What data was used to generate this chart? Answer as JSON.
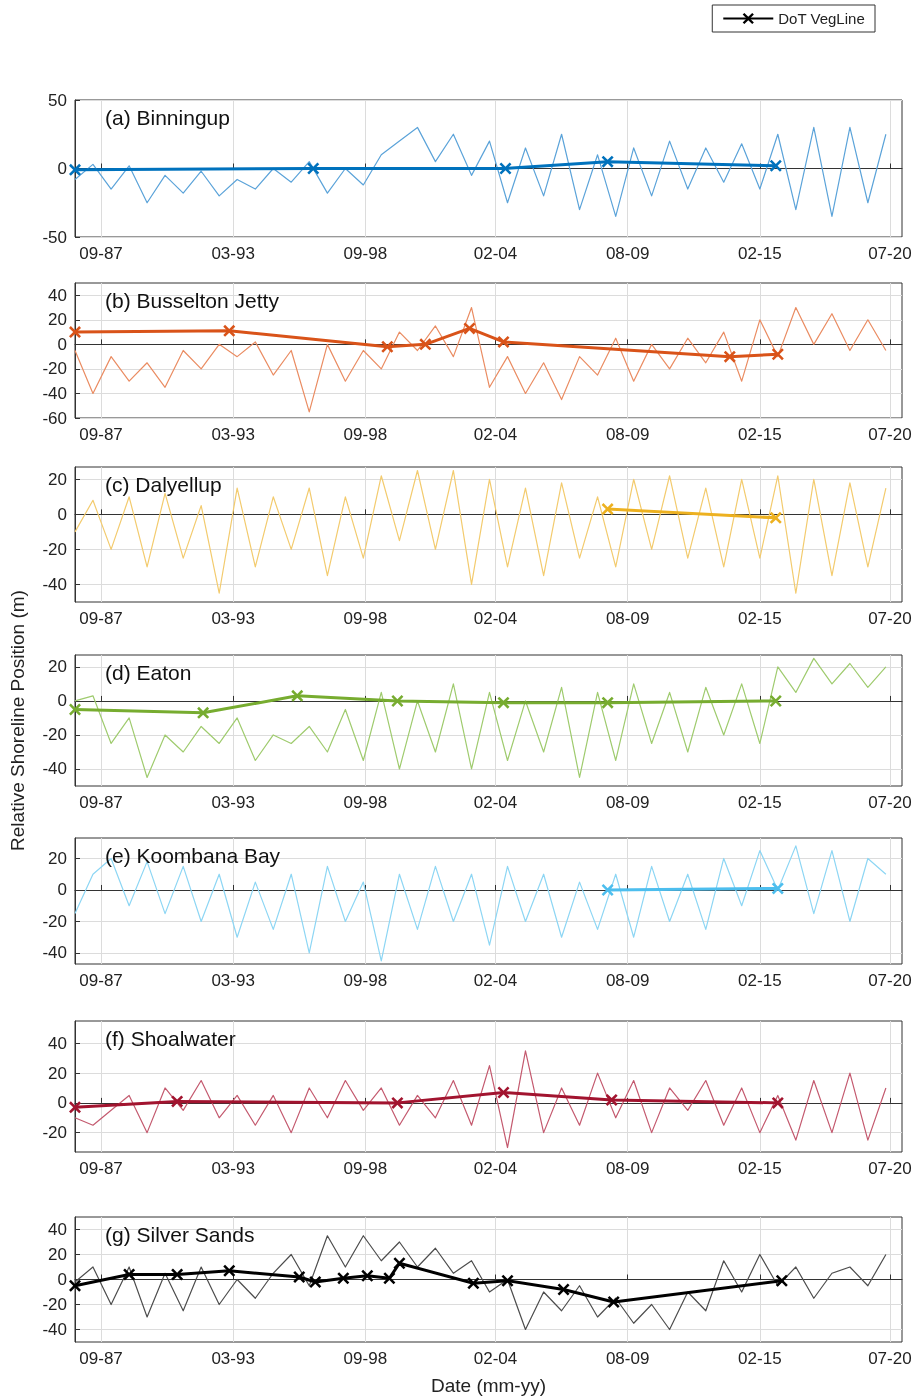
{
  "chart_data": [
    {
      "type": "line",
      "title": "(a) Binningup",
      "x": [
        "1986-08",
        "1987-05",
        "1988-02",
        "1988-11",
        "1989-08",
        "1990-05",
        "1991-02",
        "1991-11",
        "1992-08",
        "1993-05",
        "1994-02",
        "1994-11",
        "1995-08",
        "1996-05",
        "1997-02",
        "1997-11",
        "1998-08",
        "1999-05",
        "2000-02",
        "2000-11",
        "2001-08",
        "2002-05",
        "2003-02",
        "2003-11",
        "2004-08",
        "2005-05",
        "2006-02",
        "2006-11",
        "2007-08",
        "2008-05",
        "2009-02",
        "2009-11",
        "2010-08",
        "2011-05",
        "2012-02",
        "2012-11",
        "2013-08",
        "2014-05",
        "2015-02",
        "2015-11",
        "2016-08",
        "2017-05",
        "2018-02",
        "2018-11",
        "2019-08",
        "2020-05"
      ],
      "xlim": [
        "1986-08",
        "2021-01"
      ],
      "xticks": [
        {
          "value": "1987-09",
          "label": "09-87"
        },
        {
          "value": "1993-03",
          "label": "03-93"
        },
        {
          "value": "1998-09",
          "label": "09-98"
        },
        {
          "value": "2004-02",
          "label": "02-04"
        },
        {
          "value": "2009-08",
          "label": "08-09"
        },
        {
          "value": "2015-02",
          "label": "02-15"
        },
        {
          "value": "2020-07",
          "label": "07-20"
        }
      ],
      "ylim": [
        -50,
        50
      ],
      "yticks": [
        -50,
        0,
        50
      ],
      "grid": true,
      "series": [
        {
          "color": "#5ba3d9",
          "marker": "none",
          "values": [
            -8,
            3,
            -15,
            2,
            -25,
            -5,
            -18,
            -2,
            -20,
            -8,
            -15,
            0,
            -10,
            5,
            -18,
            0,
            -12,
            10,
            20,
            30,
            5,
            25,
            -5,
            20,
            -25,
            15,
            -20,
            25,
            -30,
            10,
            -35,
            15,
            -20,
            20,
            -15,
            15,
            -10,
            18,
            -15,
            25,
            -30,
            30,
            -35,
            30,
            -25,
            25
          ]
        },
        {
          "color": "#0072bd",
          "marker": "cross",
          "x": [
            "1986-08",
            "1996-07",
            "2004-07",
            "2008-10",
            "2015-10"
          ],
          "values": [
            -1,
            0,
            0,
            5,
            2
          ]
        }
      ]
    },
    {
      "type": "line",
      "title": "(b) Busselton Jetty",
      "x": [
        "1986-08",
        "1987-05",
        "1988-02",
        "1988-11",
        "1989-08",
        "1990-05",
        "1991-02",
        "1991-11",
        "1992-08",
        "1993-05",
        "1994-02",
        "1994-11",
        "1995-08",
        "1996-05",
        "1997-02",
        "1997-11",
        "1998-08",
        "1999-05",
        "2000-02",
        "2000-11",
        "2001-08",
        "2002-05",
        "2003-02",
        "2003-11",
        "2004-08",
        "2005-05",
        "2006-02",
        "2006-11",
        "2007-08",
        "2008-05",
        "2009-02",
        "2009-11",
        "2010-08",
        "2011-05",
        "2012-02",
        "2012-11",
        "2013-08",
        "2014-05",
        "2015-02",
        "2015-11",
        "2016-08",
        "2017-05",
        "2018-02",
        "2018-11",
        "2019-08",
        "2020-05"
      ],
      "xlim": [
        "1986-08",
        "2021-01"
      ],
      "xticks": [
        {
          "value": "1987-09",
          "label": "09-87"
        },
        {
          "value": "1993-03",
          "label": "03-93"
        },
        {
          "value": "1998-09",
          "label": "09-98"
        },
        {
          "value": "2004-02",
          "label": "02-04"
        },
        {
          "value": "2009-08",
          "label": "08-09"
        },
        {
          "value": "2015-02",
          "label": "02-15"
        },
        {
          "value": "2020-07",
          "label": "07-20"
        }
      ],
      "ylim": [
        -60,
        50
      ],
      "yticks": [
        -60,
        -40,
        -20,
        0,
        20,
        40
      ],
      "grid": true,
      "series": [
        {
          "color": "#ea8c62",
          "marker": "none",
          "values": [
            -5,
            -40,
            -10,
            -30,
            -15,
            -35,
            -5,
            -20,
            0,
            -10,
            2,
            -25,
            -5,
            -55,
            0,
            -30,
            -5,
            -20,
            10,
            -5,
            15,
            -10,
            30,
            -35,
            -10,
            -40,
            -15,
            -45,
            -10,
            -25,
            5,
            -30,
            0,
            -20,
            5,
            -15,
            10,
            -30,
            20,
            -10,
            30,
            0,
            25,
            -5,
            20,
            -5
          ]
        },
        {
          "color": "#d95319",
          "marker": "cross",
          "x": [
            "1986-08",
            "1993-01",
            "1999-08",
            "2001-03",
            "2003-01",
            "2004-06",
            "2013-11",
            "2015-11"
          ],
          "values": [
            10,
            11,
            -2,
            0,
            13,
            2,
            -10,
            -8
          ]
        }
      ]
    },
    {
      "type": "line",
      "title": "(c) Dalyellup",
      "x": [
        "1986-08",
        "1987-05",
        "1988-02",
        "1988-11",
        "1989-08",
        "1990-05",
        "1991-02",
        "1991-11",
        "1992-08",
        "1993-05",
        "1994-02",
        "1994-11",
        "1995-08",
        "1996-05",
        "1997-02",
        "1997-11",
        "1998-08",
        "1999-05",
        "2000-02",
        "2000-11",
        "2001-08",
        "2002-05",
        "2003-02",
        "2003-11",
        "2004-08",
        "2005-05",
        "2006-02",
        "2006-11",
        "2007-08",
        "2008-05",
        "2009-02",
        "2009-11",
        "2010-08",
        "2011-05",
        "2012-02",
        "2012-11",
        "2013-08",
        "2014-05",
        "2015-02",
        "2015-11",
        "2016-08",
        "2017-05",
        "2018-02",
        "2018-11",
        "2019-08",
        "2020-05"
      ],
      "xlim": [
        "1986-08",
        "2021-01"
      ],
      "xticks": [
        {
          "value": "1987-09",
          "label": "09-87"
        },
        {
          "value": "1993-03",
          "label": "03-93"
        },
        {
          "value": "1998-09",
          "label": "09-98"
        },
        {
          "value": "2004-02",
          "label": "02-04"
        },
        {
          "value": "2009-08",
          "label": "08-09"
        },
        {
          "value": "2015-02",
          "label": "02-15"
        },
        {
          "value": "2020-07",
          "label": "07-20"
        }
      ],
      "ylim": [
        -50,
        27
      ],
      "yticks": [
        -40,
        -20,
        0,
        20
      ],
      "grid": true,
      "series": [
        {
          "color": "#f3cb6e",
          "marker": "none",
          "values": [
            -10,
            8,
            -20,
            10,
            -30,
            12,
            -25,
            5,
            -45,
            15,
            -30,
            10,
            -20,
            15,
            -35,
            10,
            -25,
            22,
            -15,
            25,
            -20,
            25,
            -40,
            20,
            -30,
            15,
            -35,
            18,
            -25,
            10,
            -30,
            20,
            -20,
            22,
            -25,
            15,
            -30,
            20,
            -25,
            22,
            -45,
            20,
            -35,
            18,
            -30,
            15
          ]
        },
        {
          "color": "#edb120",
          "marker": "cross",
          "x": [
            "2008-10",
            "2015-10"
          ],
          "values": [
            3,
            -2
          ]
        }
      ]
    },
    {
      "type": "line",
      "title": "(d) Eaton",
      "ylabel": "Relative Shoreline Position (m)",
      "x": [
        "1986-08",
        "1987-05",
        "1988-02",
        "1988-11",
        "1989-08",
        "1990-05",
        "1991-02",
        "1991-11",
        "1992-08",
        "1993-05",
        "1994-02",
        "1994-11",
        "1995-08",
        "1996-05",
        "1997-02",
        "1997-11",
        "1998-08",
        "1999-05",
        "2000-02",
        "2000-11",
        "2001-08",
        "2002-05",
        "2003-02",
        "2003-11",
        "2004-08",
        "2005-05",
        "2006-02",
        "2006-11",
        "2007-08",
        "2008-05",
        "2009-02",
        "2009-11",
        "2010-08",
        "2011-05",
        "2012-02",
        "2012-11",
        "2013-08",
        "2014-05",
        "2015-02",
        "2015-11",
        "2016-08",
        "2017-05",
        "2018-02",
        "2018-11",
        "2019-08",
        "2020-05"
      ],
      "xlim": [
        "1986-08",
        "2021-01"
      ],
      "xticks": [
        {
          "value": "1987-09",
          "label": "09-87"
        },
        {
          "value": "1993-03",
          "label": "03-93"
        },
        {
          "value": "1998-09",
          "label": "09-98"
        },
        {
          "value": "2004-02",
          "label": "02-04"
        },
        {
          "value": "2009-08",
          "label": "08-09"
        },
        {
          "value": "2015-02",
          "label": "02-15"
        },
        {
          "value": "2020-07",
          "label": "07-20"
        }
      ],
      "ylim": [
        -50,
        27
      ],
      "yticks": [
        -40,
        -20,
        0,
        20
      ],
      "grid": true,
      "series": [
        {
          "color": "#9fcb6e",
          "marker": "none",
          "values": [
            0,
            3,
            -25,
            -10,
            -45,
            -20,
            -30,
            -15,
            -25,
            -10,
            -35,
            -20,
            -25,
            -15,
            -30,
            -5,
            -35,
            5,
            -40,
            0,
            -30,
            10,
            -40,
            5,
            -35,
            0,
            -30,
            8,
            -45,
            5,
            -35,
            10,
            -25,
            5,
            -30,
            8,
            -20,
            10,
            -25,
            20,
            5,
            25,
            10,
            22,
            8,
            20
          ]
        },
        {
          "color": "#77ac30",
          "marker": "cross",
          "x": [
            "1986-08",
            "1991-12",
            "1995-11",
            "2000-01",
            "2004-06",
            "2008-10",
            "2015-10"
          ],
          "values": [
            -5,
            -7,
            3,
            0,
            -1,
            -1,
            0
          ]
        }
      ]
    },
    {
      "type": "line",
      "title": "(e) Koombana Bay",
      "x": [
        "1986-08",
        "1987-05",
        "1988-02",
        "1988-11",
        "1989-08",
        "1990-05",
        "1991-02",
        "1991-11",
        "1992-08",
        "1993-05",
        "1994-02",
        "1994-11",
        "1995-08",
        "1996-05",
        "1997-02",
        "1997-11",
        "1998-08",
        "1999-05",
        "2000-02",
        "2000-11",
        "2001-08",
        "2002-05",
        "2003-02",
        "2003-11",
        "2004-08",
        "2005-05",
        "2006-02",
        "2006-11",
        "2007-08",
        "2008-05",
        "2009-02",
        "2009-11",
        "2010-08",
        "2011-05",
        "2012-02",
        "2012-11",
        "2013-08",
        "2014-05",
        "2015-02",
        "2015-11",
        "2016-08",
        "2017-05",
        "2018-02",
        "2018-11",
        "2019-08",
        "2020-05"
      ],
      "xlim": [
        "1986-08",
        "2021-01"
      ],
      "xticks": [
        {
          "value": "1987-09",
          "label": "09-87"
        },
        {
          "value": "1993-03",
          "label": "03-93"
        },
        {
          "value": "1998-09",
          "label": "09-98"
        },
        {
          "value": "2004-02",
          "label": "02-04"
        },
        {
          "value": "2009-08",
          "label": "08-09"
        },
        {
          "value": "2015-02",
          "label": "02-15"
        },
        {
          "value": "2020-07",
          "label": "07-20"
        }
      ],
      "ylim": [
        -47,
        33
      ],
      "yticks": [
        -40,
        -20,
        0,
        20
      ],
      "grid": true,
      "series": [
        {
          "color": "#8dd6f4",
          "marker": "none",
          "values": [
            -15,
            10,
            20,
            -10,
            18,
            -15,
            15,
            -20,
            10,
            -30,
            5,
            -25,
            10,
            -40,
            15,
            -20,
            5,
            -45,
            10,
            -25,
            15,
            -20,
            10,
            -35,
            15,
            -20,
            10,
            -30,
            5,
            -25,
            10,
            -30,
            15,
            -20,
            10,
            -25,
            20,
            -10,
            25,
            0,
            28,
            -15,
            25,
            -20,
            20,
            10
          ]
        },
        {
          "color": "#4dbeee",
          "marker": "cross",
          "x": [
            "2008-10",
            "2015-11"
          ],
          "values": [
            0,
            1
          ]
        }
      ]
    },
    {
      "type": "line",
      "title": "(f) Shoalwater",
      "x": [
        "1986-08",
        "1987-05",
        "1988-02",
        "1988-11",
        "1989-08",
        "1990-05",
        "1991-02",
        "1991-11",
        "1992-08",
        "1993-05",
        "1994-02",
        "1994-11",
        "1995-08",
        "1996-05",
        "1997-02",
        "1997-11",
        "1998-08",
        "1999-05",
        "2000-02",
        "2000-11",
        "2001-08",
        "2002-05",
        "2003-02",
        "2003-11",
        "2004-08",
        "2005-05",
        "2006-02",
        "2006-11",
        "2007-08",
        "2008-05",
        "2009-02",
        "2009-11",
        "2010-08",
        "2011-05",
        "2012-02",
        "2012-11",
        "2013-08",
        "2014-05",
        "2015-02",
        "2015-11",
        "2016-08",
        "2017-05",
        "2018-02",
        "2018-11",
        "2019-08",
        "2020-05"
      ],
      "xlim": [
        "1986-08",
        "2021-01"
      ],
      "xticks": [
        {
          "value": "1987-09",
          "label": "09-87"
        },
        {
          "value": "1993-03",
          "label": "03-93"
        },
        {
          "value": "1998-09",
          "label": "09-98"
        },
        {
          "value": "2004-02",
          "label": "02-04"
        },
        {
          "value": "2009-08",
          "label": "08-09"
        },
        {
          "value": "2015-02",
          "label": "02-15"
        },
        {
          "value": "2020-07",
          "label": "07-20"
        }
      ],
      "ylim": [
        -33,
        55
      ],
      "yticks": [
        -20,
        0,
        20,
        40
      ],
      "grid": true,
      "series": [
        {
          "color": "#c45a6f",
          "marker": "none",
          "values": [
            -10,
            -15,
            -5,
            5,
            -20,
            10,
            -5,
            15,
            -10,
            5,
            -15,
            5,
            -20,
            10,
            -10,
            15,
            -5,
            10,
            -15,
            5,
            -10,
            15,
            -15,
            25,
            -30,
            35,
            -20,
            10,
            -15,
            20,
            -10,
            15,
            -20,
            10,
            -5,
            15,
            -15,
            10,
            -20,
            5,
            -25,
            15,
            -20,
            20,
            -25,
            10
          ]
        },
        {
          "color": "#a2142f",
          "marker": "cross",
          "x": [
            "1986-08",
            "1990-11",
            "2000-01",
            "2004-06",
            "2008-12",
            "2015-11"
          ],
          "values": [
            -3,
            1,
            0,
            7,
            2,
            0
          ]
        }
      ]
    },
    {
      "type": "line",
      "title": "(g) Silver Sands",
      "xlabel": "Date (mm-yy)",
      "legend": "top right",
      "x": [
        "1986-08",
        "1987-05",
        "1988-02",
        "1988-11",
        "1989-08",
        "1990-05",
        "1991-02",
        "1991-11",
        "1992-08",
        "1993-05",
        "1994-02",
        "1994-11",
        "1995-08",
        "1996-05",
        "1997-02",
        "1997-11",
        "1998-08",
        "1999-05",
        "2000-02",
        "2000-11",
        "2001-08",
        "2002-05",
        "2003-02",
        "2003-11",
        "2004-08",
        "2005-05",
        "2006-02",
        "2006-11",
        "2007-08",
        "2008-05",
        "2009-02",
        "2009-11",
        "2010-08",
        "2011-05",
        "2012-02",
        "2012-11",
        "2013-08",
        "2014-05",
        "2015-02",
        "2015-11",
        "2016-08",
        "2017-05",
        "2018-02",
        "2018-11",
        "2019-08",
        "2020-05"
      ],
      "xlim": [
        "1986-08",
        "2021-01"
      ],
      "xticks": [
        {
          "value": "1987-09",
          "label": "09-87"
        },
        {
          "value": "1993-03",
          "label": "03-93"
        },
        {
          "value": "1998-09",
          "label": "09-98"
        },
        {
          "value": "2004-02",
          "label": "02-04"
        },
        {
          "value": "2009-08",
          "label": "08-09"
        },
        {
          "value": "2015-02",
          "label": "02-15"
        },
        {
          "value": "2020-07",
          "label": "07-20"
        }
      ],
      "ylim": [
        -50,
        50
      ],
      "yticks": [
        -40,
        -20,
        0,
        20,
        40
      ],
      "grid": true,
      "series": [
        {
          "color": "#4d4d4d",
          "marker": "none",
          "values": [
            -2,
            10,
            -20,
            10,
            -30,
            5,
            -25,
            10,
            -20,
            0,
            -15,
            5,
            20,
            -5,
            35,
            10,
            35,
            15,
            30,
            10,
            25,
            5,
            15,
            -10,
            0,
            -40,
            -10,
            -25,
            -5,
            -30,
            -15,
            -35,
            -20,
            -40,
            -10,
            -25,
            15,
            -10,
            20,
            -5,
            10,
            -15,
            5,
            10,
            -5,
            20
          ]
        },
        {
          "name": "DoT VegLine",
          "color": "#000000",
          "marker": "cross",
          "x": [
            "1986-08",
            "1988-11",
            "1990-11",
            "1993-01",
            "1995-12",
            "1996-08",
            "1997-10",
            "1998-10",
            "1999-09",
            "2000-02",
            "2003-03",
            "2004-08",
            "2006-12",
            "2009-01",
            "2016-01"
          ],
          "values": [
            -5,
            4,
            4,
            7,
            2,
            -2,
            1,
            3,
            1,
            13,
            -3,
            -1,
            -8,
            -18,
            -1
          ]
        }
      ]
    }
  ]
}
